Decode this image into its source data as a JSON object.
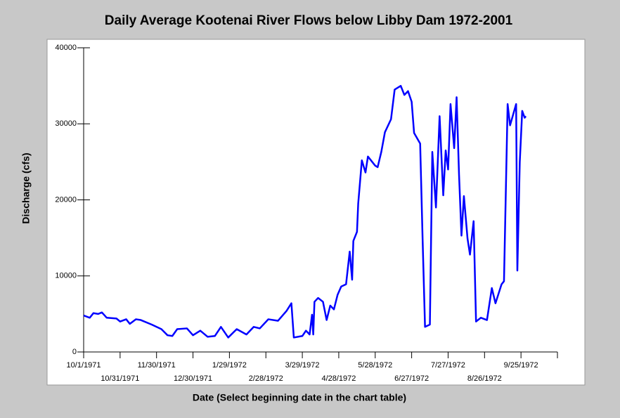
{
  "chart_data": {
    "type": "line",
    "title": "Daily Average Kootenai River Flows below Libby Dam 1972-2001",
    "xlabel": "Date (Select beginning date in the chart table)",
    "ylabel": "Discharge (cfs)",
    "xlim": [
      "10/1/1971",
      "10/25/1972"
    ],
    "xticks": [
      "10/1/1971",
      "10/31/1971",
      "11/30/1971",
      "12/30/1971",
      "1/29/1972",
      "2/28/1972",
      "3/29/1972",
      "4/28/1972",
      "5/28/1972",
      "6/27/1972",
      "7/27/1972",
      "8/26/1972",
      "9/25/1972"
    ],
    "ylim": [
      0,
      40000
    ],
    "yticks": [
      0,
      10000,
      20000,
      30000,
      40000
    ],
    "grid": false,
    "series": [
      {
        "name": "Discharge",
        "color": "#0000ff",
        "x": [
          "10/1/1971",
          "10/6/1971",
          "10/9/1971",
          "10/13/1971",
          "10/16/1971",
          "10/20/1971",
          "10/28/1971",
          "10/31/1971",
          "11/5/1971",
          "11/8/1971",
          "11/13/1971",
          "11/17/1971",
          "11/26/1971",
          "12/4/1971",
          "12/9/1971",
          "12/13/1971",
          "12/17/1971",
          "12/25/1971",
          "12/30/1971",
          "1/5/1972",
          "1/11/1972",
          "1/17/1972",
          "1/22/1972",
          "1/28/1972",
          "2/4/1972",
          "2/12/1972",
          "2/18/1972",
          "2/23/1972",
          "3/1/1972",
          "3/9/1972",
          "3/16/1972",
          "3/20/1972",
          "3/22/1972",
          "3/29/1972",
          "4/1/1972",
          "4/4/1972",
          "4/6/1972",
          "4/7/1972",
          "4/8/1972",
          "4/11/1972",
          "4/15/1972",
          "4/18/1972",
          "4/21/1972",
          "4/24/1972",
          "4/27/1972",
          "4/30/1972",
          "5/4/1972",
          "5/7/1972",
          "5/9/1972",
          "5/10/1972",
          "5/13/1972",
          "5/14/1972",
          "5/17/1972",
          "5/20/1972",
          "5/22/1972",
          "5/28/1972",
          "5/30/1972",
          "6/2/1972",
          "6/5/1972",
          "6/10/1972",
          "6/13/1972",
          "6/18/1972",
          "6/21/1972",
          "6/24/1972",
          "6/27/1972",
          "6/29/1972",
          "7/4/1972",
          "7/6/1972",
          "7/8/1972",
          "7/12/1972",
          "7/14/1972",
          "7/17/1972",
          "7/20/1972",
          "7/23/1972",
          "7/25/1972",
          "7/27/1972",
          "7/29/1972",
          "8/1/1972",
          "8/3/1972",
          "8/5/1972",
          "8/7/1972",
          "8/9/1972",
          "8/12/1972",
          "8/14/1972",
          "8/17/1972",
          "8/19/1972",
          "8/23/1972",
          "8/28/1972",
          "9/1/1972",
          "9/4/1972",
          "9/9/1972",
          "9/11/1972",
          "9/14/1972",
          "9/16/1972",
          "9/21/1972",
          "9/22/1972",
          "9/24/1972",
          "9/26/1972",
          "9/28/1972",
          "9/29/1972"
        ],
        "values": [
          4800,
          4500,
          5100,
          5000,
          5200,
          4500,
          4400,
          4000,
          4300,
          3700,
          4300,
          4200,
          3600,
          3000,
          2200,
          2100,
          3000,
          3100,
          2200,
          2800,
          2000,
          2100,
          3300,
          1900,
          3000,
          2300,
          3300,
          3100,
          4300,
          4100,
          5400,
          6400,
          1900,
          2100,
          2800,
          2300,
          4900,
          2300,
          6600,
          7100,
          6600,
          4200,
          6100,
          5600,
          7500,
          8600,
          8900,
          13200,
          9500,
          14600,
          15800,
          19500,
          25200,
          23600,
          25700,
          24500,
          24300,
          26300,
          28900,
          30600,
          34500,
          35000,
          33800,
          34300,
          32900,
          28800,
          27400,
          14900,
          3300,
          3600,
          26300,
          19000,
          31000,
          20600,
          26500,
          24000,
          32600,
          26800,
          33500,
          23300,
          15300,
          20500,
          14900,
          12800,
          17200,
          4000,
          4500,
          4200,
          8400,
          6400,
          8900,
          9300,
          32600,
          29800,
          32600,
          10700,
          25000,
          31700,
          30800,
          31000
        ]
      }
    ]
  }
}
